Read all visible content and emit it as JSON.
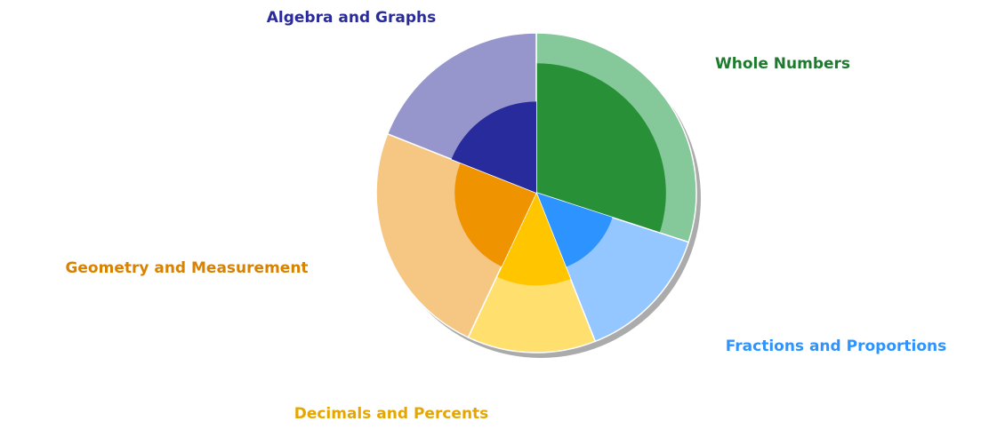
{
  "chart_data": {
    "type": "nested_pie",
    "categories": [
      "Whole Numbers",
      "Fractions and Proportions",
      "Decimals and Percents",
      "Geometry and Measurement",
      "Algebra and Graphs"
    ],
    "values": [
      30,
      14,
      13,
      24,
      19
    ],
    "inner_values": [
      81,
      50,
      58,
      51,
      57
    ],
    "outer_colors": [
      "#85c89a",
      "#94c6ff",
      "#ffdf6e",
      "#f6c783",
      "#9796cc"
    ],
    "inner_colors": [
      "#289137",
      "#2c93ff",
      "#ffc600",
      "#f09300",
      "#282b9b"
    ],
    "label_colors": [
      "#1e7a2e",
      "#2c93ff",
      "#e6a600",
      "#d98200",
      "#2a2b9b"
    ]
  }
}
